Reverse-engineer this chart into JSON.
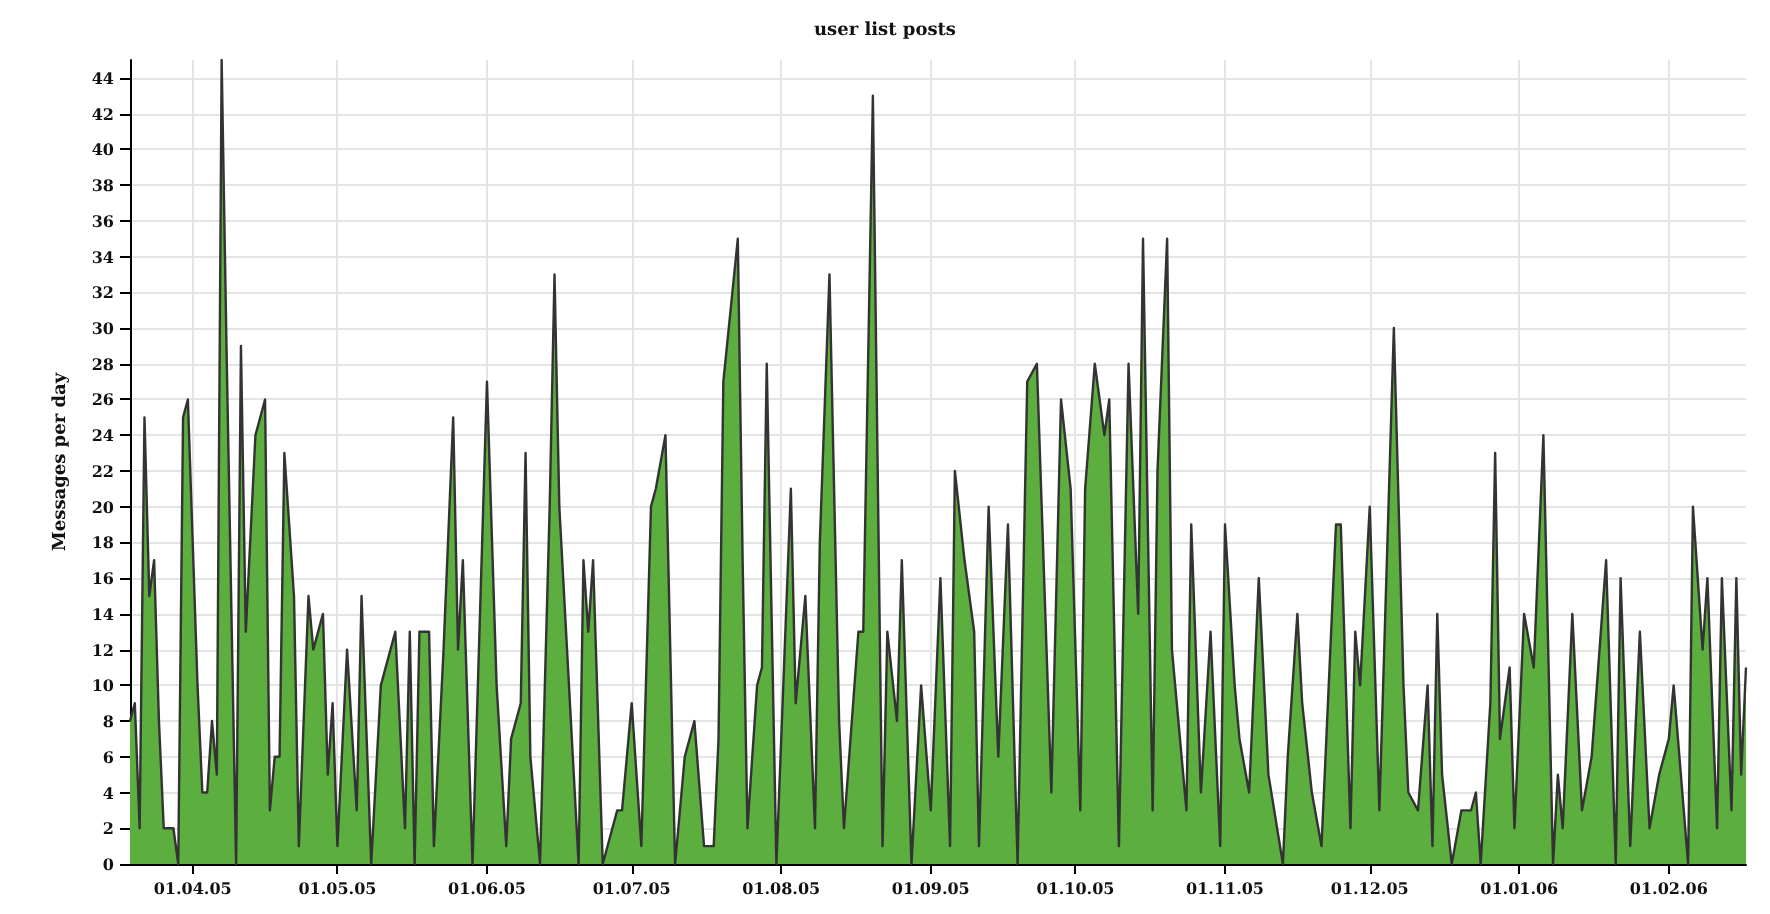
{
  "chart_data": {
    "type": "area",
    "title": "user list posts",
    "ylabel": "Messages per day",
    "x": [
      "2005-03-19",
      "2005-03-20",
      "2005-03-21",
      "2005-03-22",
      "2005-03-23",
      "2005-03-24",
      "2005-03-25",
      "2005-03-26",
      "2005-03-28",
      "2005-03-29",
      "2005-03-30",
      "2005-03-31",
      "2005-04-02",
      "2005-04-03",
      "2005-04-04",
      "2005-04-05",
      "2005-04-06",
      "2005-04-07",
      "2005-04-08",
      "2005-04-10",
      "2005-04-11",
      "2005-04-12",
      "2005-04-14",
      "2005-04-16",
      "2005-04-17",
      "2005-04-18",
      "2005-04-19",
      "2005-04-20",
      "2005-04-22",
      "2005-04-23",
      "2005-04-25",
      "2005-04-26",
      "2005-04-28",
      "2005-04-29",
      "2005-04-30",
      "2005-05-01",
      "2005-05-03",
      "2005-05-05",
      "2005-05-06",
      "2005-05-08",
      "2005-05-10",
      "2005-05-12",
      "2005-05-13",
      "2005-05-15",
      "2005-05-16",
      "2005-05-17",
      "2005-05-18",
      "2005-05-20",
      "2005-05-21",
      "2005-05-23",
      "2005-05-25",
      "2005-05-26",
      "2005-05-27",
      "2005-05-29",
      "2005-06-01",
      "2005-06-03",
      "2005-06-05",
      "2005-06-06",
      "2005-06-08",
      "2005-06-09",
      "2005-06-10",
      "2005-06-12",
      "2005-06-14",
      "2005-06-15",
      "2005-06-16",
      "2005-06-18",
      "2005-06-20",
      "2005-06-21",
      "2005-06-22",
      "2005-06-23",
      "2005-06-25",
      "2005-06-28",
      "2005-06-29",
      "2005-07-01",
      "2005-07-03",
      "2005-07-05",
      "2005-07-06",
      "2005-07-08",
      "2005-07-10",
      "2005-07-12",
      "2005-07-14",
      "2005-07-16",
      "2005-07-18",
      "2005-07-19",
      "2005-07-20",
      "2005-07-23",
      "2005-07-24",
      "2005-07-25",
      "2005-07-27",
      "2005-07-28",
      "2005-07-29",
      "2005-07-31",
      "2005-08-03",
      "2005-08-04",
      "2005-08-06",
      "2005-08-08",
      "2005-08-09",
      "2005-08-11",
      "2005-08-13",
      "2005-08-14",
      "2005-08-17",
      "2005-08-18",
      "2005-08-20",
      "2005-08-22",
      "2005-08-23",
      "2005-08-25",
      "2005-08-26",
      "2005-08-28",
      "2005-08-30",
      "2005-09-01",
      "2005-09-03",
      "2005-09-05",
      "2005-09-06",
      "2005-09-08",
      "2005-09-10",
      "2005-09-11",
      "2005-09-13",
      "2005-09-15",
      "2005-09-17",
      "2005-09-19",
      "2005-09-21",
      "2005-09-23",
      "2005-09-24",
      "2005-09-26",
      "2005-09-28",
      "2005-09-30",
      "2005-10-02",
      "2005-10-03",
      "2005-10-05",
      "2005-10-07",
      "2005-10-08",
      "2005-10-10",
      "2005-10-12",
      "2005-10-14",
      "2005-10-15",
      "2005-10-17",
      "2005-10-18",
      "2005-10-20",
      "2005-10-21",
      "2005-10-24",
      "2005-10-25",
      "2005-10-27",
      "2005-10-29",
      "2005-10-31",
      "2005-11-01",
      "2005-11-03",
      "2005-11-04",
      "2005-11-06",
      "2005-11-08",
      "2005-11-10",
      "2005-11-13",
      "2005-11-14",
      "2005-11-16",
      "2005-11-17",
      "2005-11-19",
      "2005-11-21",
      "2005-11-22",
      "2005-11-24",
      "2005-11-25",
      "2005-11-27",
      "2005-11-28",
      "2005-11-29",
      "2005-12-01",
      "2005-12-03",
      "2005-12-06",
      "2005-12-08",
      "2005-12-09",
      "2005-12-11",
      "2005-12-13",
      "2005-12-14",
      "2005-12-15",
      "2005-12-16",
      "2005-12-18",
      "2005-12-20",
      "2005-12-22",
      "2005-12-23",
      "2005-12-24",
      "2005-12-26",
      "2005-12-27",
      "2005-12-28",
      "2005-12-30",
      "2005-12-31",
      "2006-01-02",
      "2006-01-04",
      "2006-01-06",
      "2006-01-08",
      "2006-01-09",
      "2006-01-10",
      "2006-01-12",
      "2006-01-14",
      "2006-01-16",
      "2006-01-19",
      "2006-01-21",
      "2006-01-22",
      "2006-01-24",
      "2006-01-26",
      "2006-01-28",
      "2006-01-30",
      "2006-02-01",
      "2006-02-02",
      "2006-02-05",
      "2006-02-06",
      "2006-02-08",
      "2006-02-09",
      "2006-02-11",
      "2006-02-12",
      "2006-02-14",
      "2006-02-15",
      "2006-02-16",
      "2006-02-17"
    ],
    "series": [
      {
        "color": "#5cae3e",
        "values": [
          8,
          9,
          2,
          25,
          15,
          17,
          8,
          2,
          2,
          0,
          25,
          26,
          10,
          4,
          4,
          8,
          5,
          45,
          29,
          0,
          29,
          13,
          24,
          26,
          3,
          6,
          6,
          23,
          15,
          1,
          15,
          12,
          14,
          5,
          9,
          1,
          12,
          3,
          15,
          0,
          10,
          12,
          13,
          2,
          13,
          0,
          13,
          13,
          1,
          12,
          25,
          12,
          17,
          0,
          27,
          10,
          1,
          7,
          9,
          23,
          6,
          0,
          20,
          33,
          20,
          10,
          0,
          17,
          13,
          17,
          0,
          3,
          3,
          9,
          1,
          20,
          21,
          24,
          0,
          6,
          8,
          1,
          1,
          7,
          27,
          35,
          17,
          2,
          10,
          11,
          28,
          0,
          21,
          9,
          15,
          2,
          18,
          33,
          8,
          2,
          13,
          13,
          43,
          1,
          13,
          8,
          17,
          0,
          10,
          3,
          16,
          1,
          22,
          17,
          13,
          1,
          20,
          6,
          19,
          0,
          27,
          28,
          20,
          4,
          26,
          21,
          3,
          21,
          28,
          24,
          26,
          1,
          28,
          14,
          35,
          3,
          22,
          35,
          12,
          3,
          19,
          4,
          13,
          1,
          19,
          10,
          7,
          4,
          16,
          5,
          0,
          6,
          14,
          9,
          4,
          1,
          7,
          19,
          19,
          2,
          13,
          10,
          20,
          3,
          30,
          10,
          4,
          3,
          10,
          1,
          14,
          5,
          0,
          3,
          3,
          4,
          0,
          9,
          23,
          7,
          11,
          2,
          14,
          11,
          24,
          0,
          5,
          2,
          14,
          3,
          6,
          17,
          0,
          16,
          1,
          13,
          2,
          5,
          7,
          10,
          0,
          20,
          12,
          16,
          2,
          16,
          3,
          16,
          5,
          11
        ]
      }
    ],
    "xlim": [
      "2005-03-19",
      "2006-02-17"
    ],
    "xticks": [
      {
        "value": "2005-04-01",
        "label": "01.04.05"
      },
      {
        "value": "2005-05-01",
        "label": "01.05.05"
      },
      {
        "value": "2005-06-01",
        "label": "01.06.05"
      },
      {
        "value": "2005-07-01",
        "label": "01.07.05"
      },
      {
        "value": "2005-08-01",
        "label": "01.08.05"
      },
      {
        "value": "2005-09-01",
        "label": "01.09.05"
      },
      {
        "value": "2005-10-01",
        "label": "01.10.05"
      },
      {
        "value": "2005-11-01",
        "label": "01.11.05"
      },
      {
        "value": "2005-12-01",
        "label": "01.12.05"
      },
      {
        "value": "2006-01-01",
        "label": "01.01.06"
      },
      {
        "value": "2006-02-01",
        "label": "01.02.06"
      }
    ],
    "ylim": [
      0,
      45
    ],
    "yticks": [
      0,
      2,
      4,
      6,
      8,
      10,
      12,
      14,
      16,
      18,
      20,
      22,
      24,
      26,
      28,
      30,
      32,
      34,
      36,
      38,
      40,
      42,
      44
    ],
    "grid": true,
    "marker": "none",
    "line_style": "solid"
  }
}
